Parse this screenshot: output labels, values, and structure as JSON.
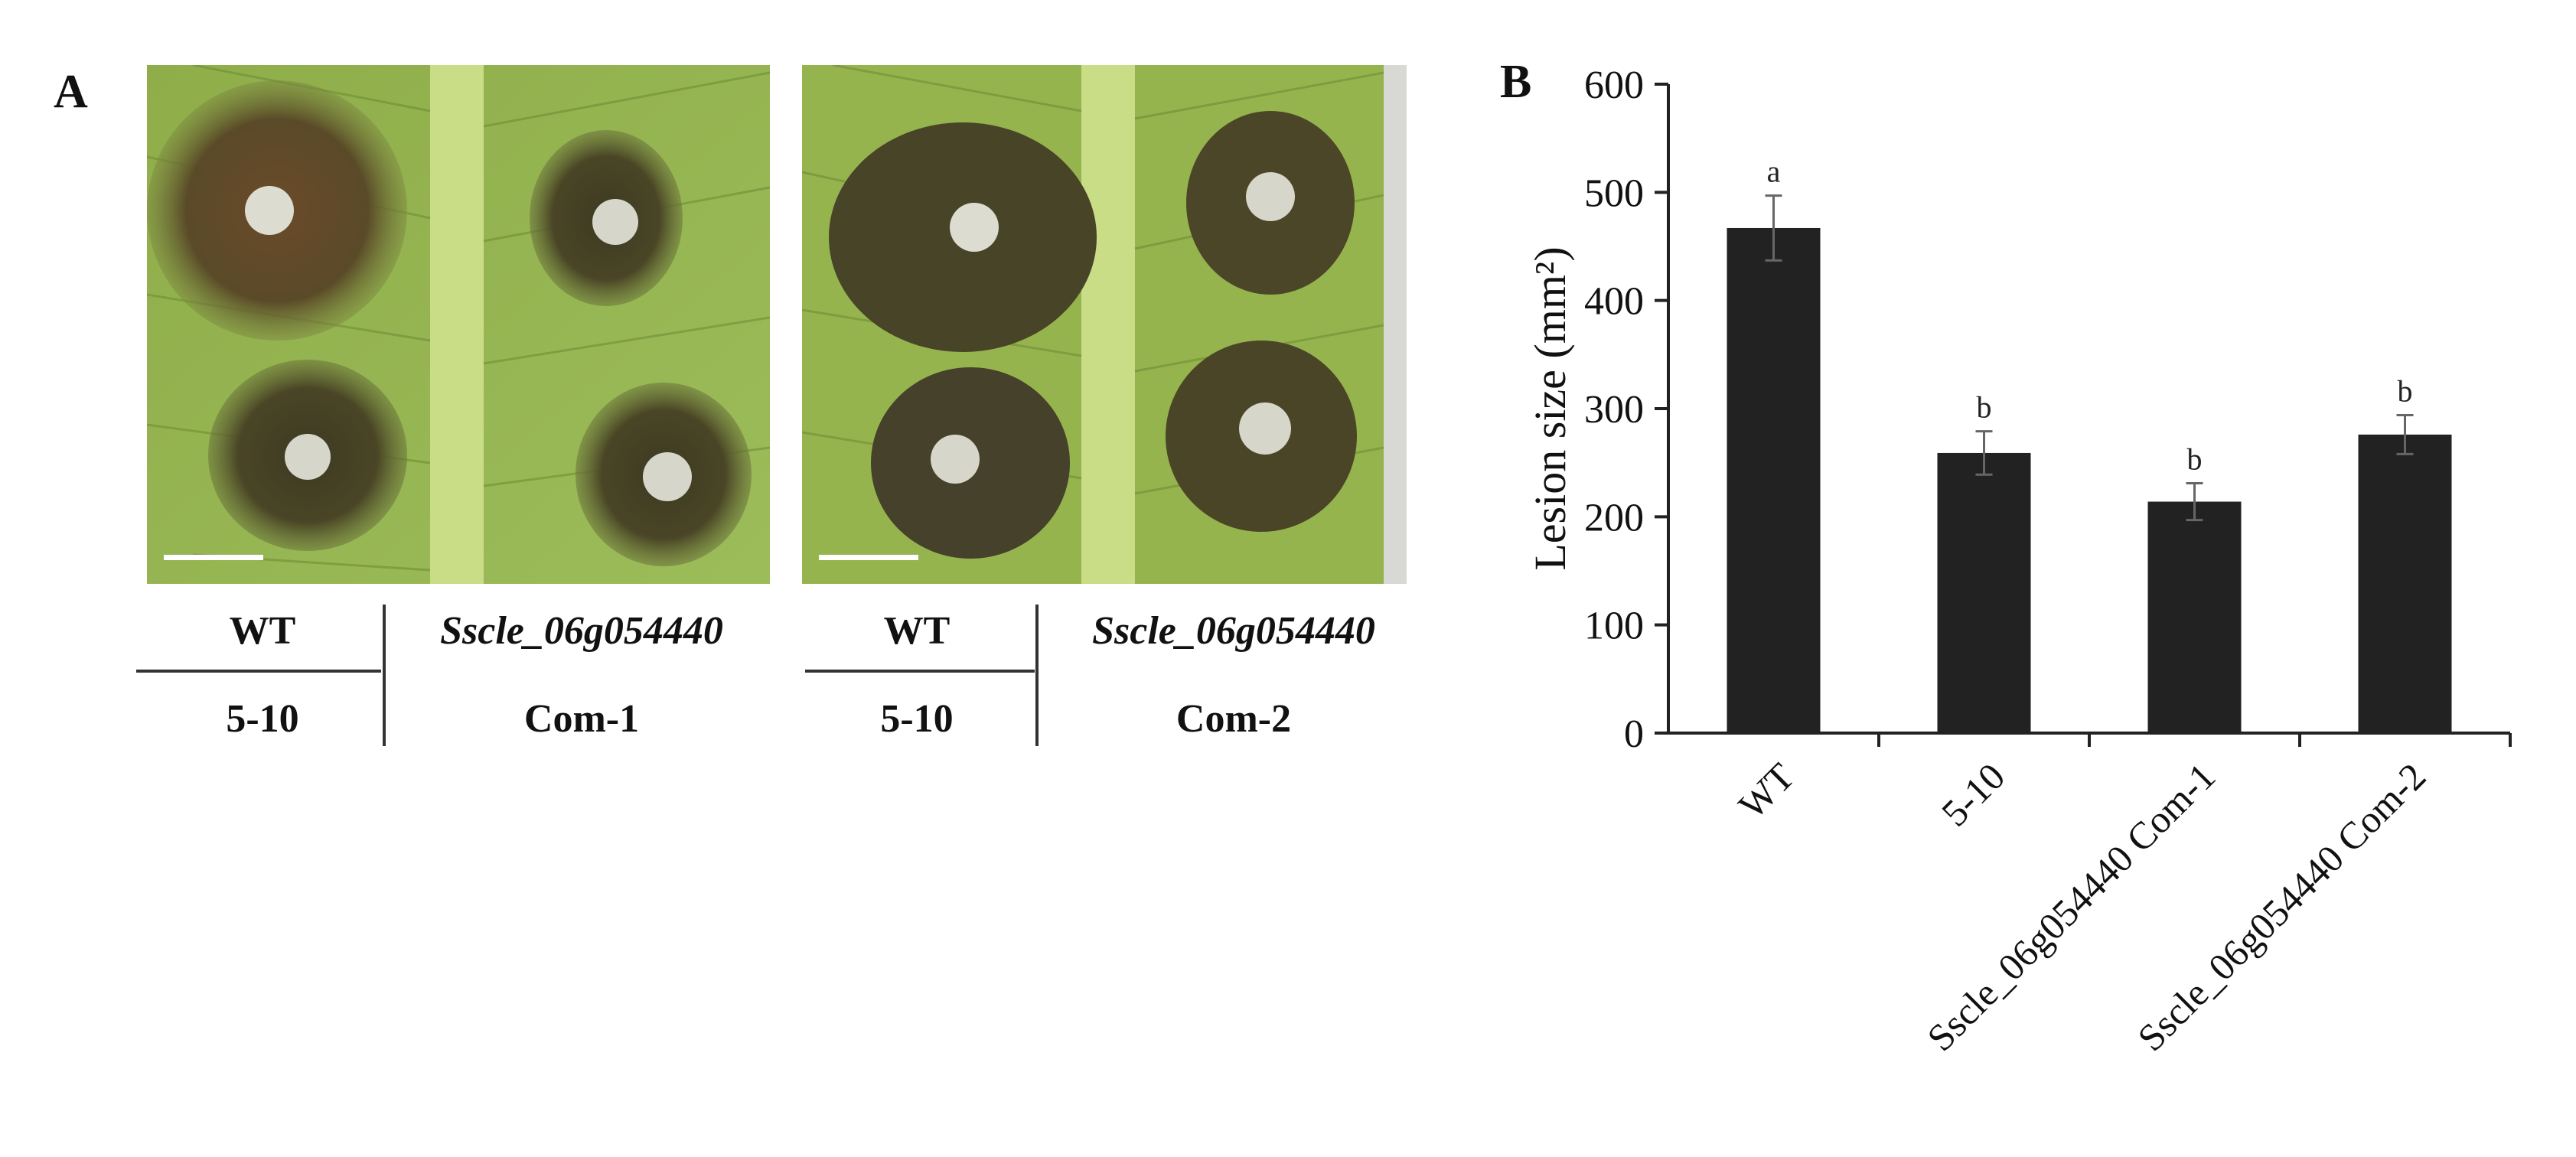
{
  "figure": {
    "panel_a_label": "A",
    "panel_b_label": "B",
    "photo_1": {
      "top_left": "WT",
      "bottom_left": "5-10",
      "top_right": "Sscle_06g054440",
      "bottom_right": "Com-1"
    },
    "photo_2": {
      "top_left": "WT",
      "bottom_left": "5-10",
      "top_right": "Sscle_06g054440",
      "bottom_right": "Com-2"
    }
  },
  "chart_data": {
    "type": "bar",
    "title": "",
    "xlabel": "",
    "ylabel": "Lesion size (mm²)",
    "ylim": [
      0,
      600
    ],
    "yticks": [
      0,
      100,
      200,
      300,
      400,
      500,
      600
    ],
    "categories": [
      "WT",
      "5-10",
      "Sscle_06g054440 Com-1",
      "Sscle_06g054440 Com-2"
    ],
    "values": [
      467,
      259,
      214,
      276
    ],
    "errors": [
      30,
      20,
      17,
      18
    ],
    "significance": [
      "a",
      "b",
      "b",
      "b"
    ],
    "bar_color": "#222222",
    "grid": false,
    "legend": "none"
  }
}
